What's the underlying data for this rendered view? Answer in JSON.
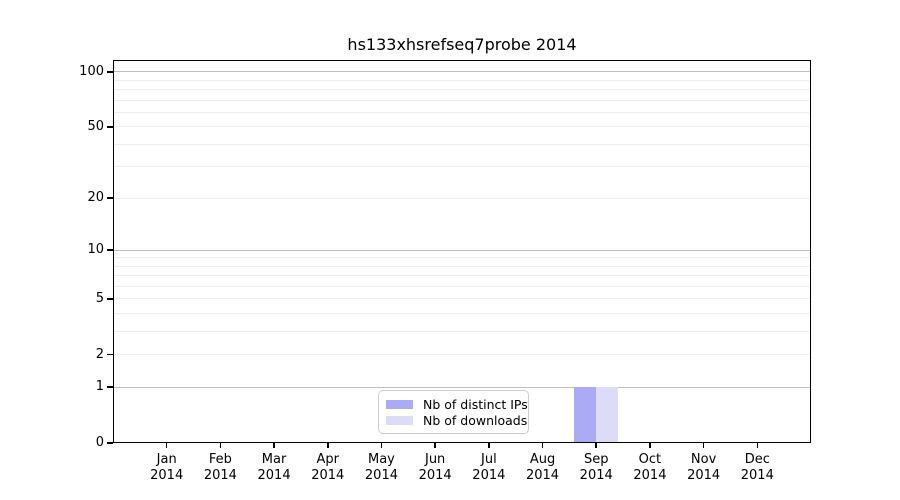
{
  "chart_data": {
    "type": "bar",
    "title": "hs133xhsrefseq7probe 2014",
    "year": "2014",
    "categories": [
      "Jan",
      "Feb",
      "Mar",
      "Apr",
      "May",
      "Jun",
      "Jul",
      "Aug",
      "Sep",
      "Oct",
      "Nov",
      "Dec"
    ],
    "series": [
      {
        "name": "Nb of distinct IPs",
        "color": "#aaaaf5",
        "values": [
          0,
          0,
          0,
          0,
          0,
          0,
          0,
          0,
          1,
          0,
          0,
          0
        ]
      },
      {
        "name": "Nb of downloads",
        "color": "#dcdcf8",
        "values": [
          0,
          0,
          0,
          0,
          0,
          0,
          0,
          0,
          1,
          0,
          0,
          0
        ]
      }
    ],
    "xlabel": "",
    "ylabel": "",
    "y_axis": {
      "scale": "log1p",
      "ylim": [
        0,
        116
      ],
      "tick_values": [
        0,
        1,
        2,
        5,
        10,
        20,
        50,
        100
      ],
      "tick_labels": [
        "0",
        "1",
        "2",
        "5",
        "10",
        "20",
        "50",
        "100"
      ],
      "major_gridlines": [
        1,
        10,
        100
      ],
      "minor_gridlines": [
        2,
        3,
        4,
        5,
        6,
        7,
        8,
        9,
        20,
        30,
        40,
        50,
        60,
        70,
        80,
        90
      ]
    },
    "legend": {
      "position": "lower center",
      "entries": [
        "Nb of distinct IPs",
        "Nb of downloads"
      ]
    },
    "colors": {
      "background": "#ffffff",
      "spine": "#000000",
      "major_grid": "#bdbdbd",
      "minor_grid": "#ececec",
      "text": "#000000"
    }
  }
}
